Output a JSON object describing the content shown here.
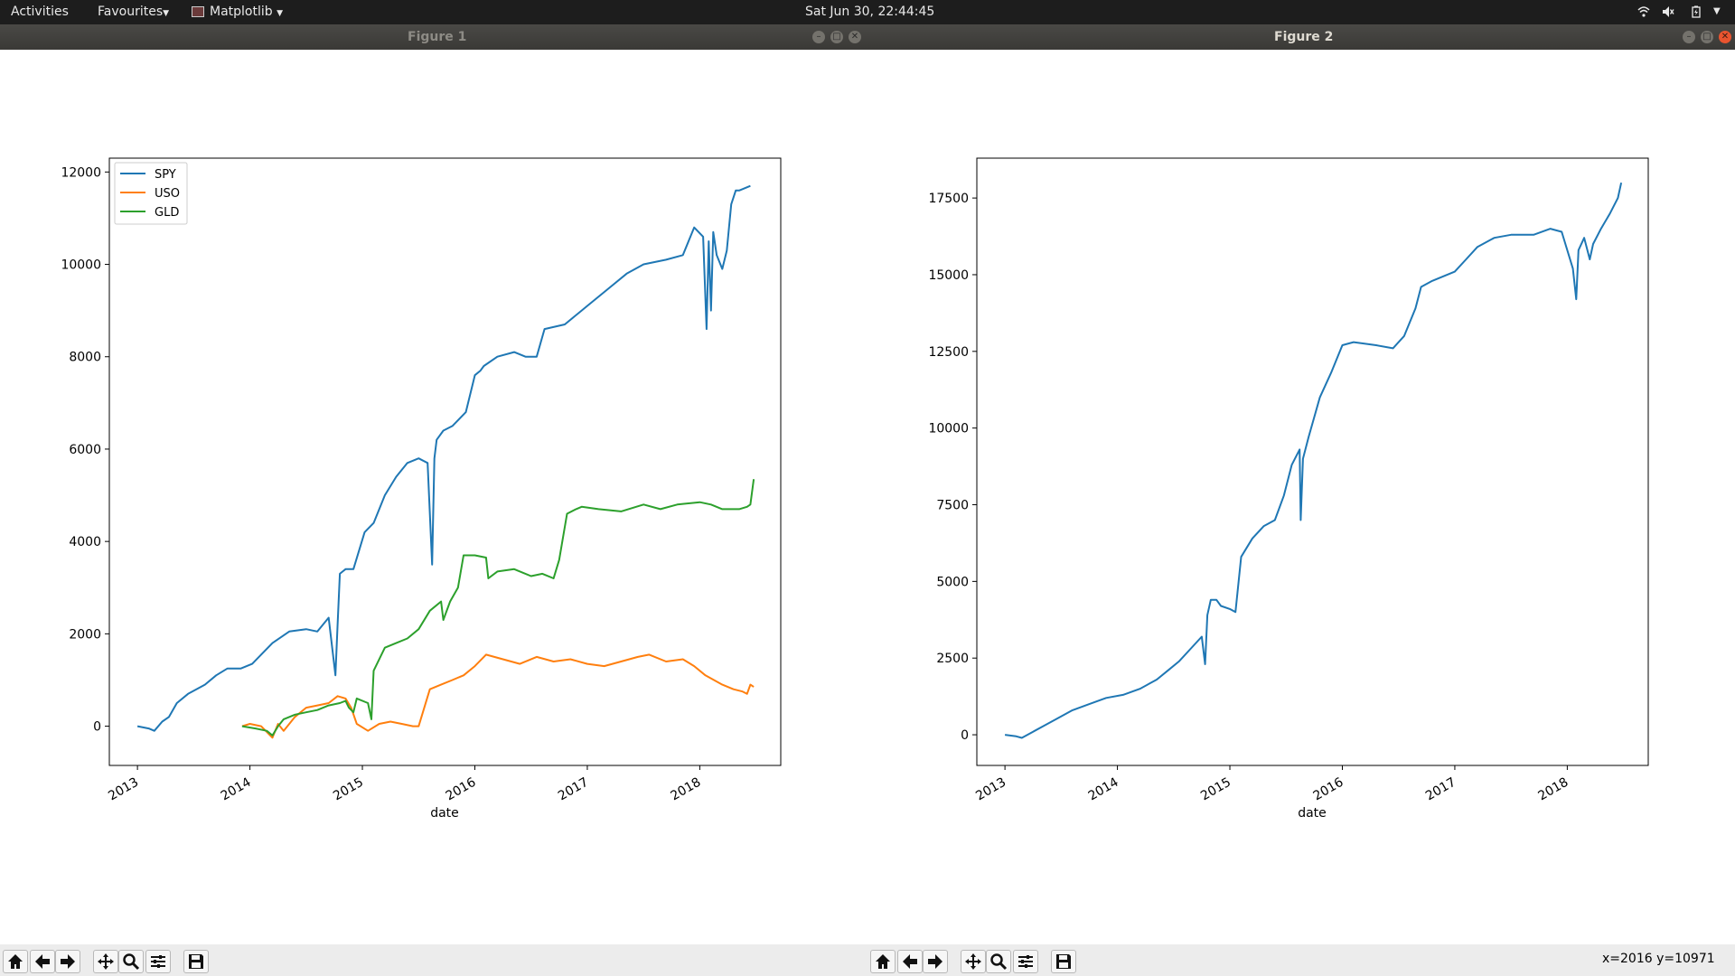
{
  "topbar": {
    "activities": "Activities",
    "favourites": "Favourites",
    "app_menu": "Matplotlib",
    "clock": "Sat Jun 30, 22:44:45",
    "icons": [
      "wifi-icon",
      "volume-muted-icon",
      "battery-icon",
      "system-menu-icon"
    ]
  },
  "windows": {
    "figure1": {
      "title": "Figure 1"
    },
    "figure2": {
      "title": "Figure 2"
    }
  },
  "toolbar": {
    "buttons": [
      "home-icon",
      "back-arrow-icon",
      "forward-arrow-icon",
      "pan-icon",
      "zoom-icon",
      "subplots-config-icon",
      "save-icon"
    ],
    "status": "x=2016 y=10971"
  },
  "colors": {
    "SPY": "#1f77b4",
    "USO": "#ff7f0e",
    "GLD": "#2ca02c"
  },
  "chart_data": [
    {
      "type": "line",
      "xlabel": "date",
      "ylabel": "",
      "xlim": [
        2012.75,
        2018.72
      ],
      "ylim": [
        -850,
        12300
      ],
      "yticks": [
        0,
        2000,
        4000,
        6000,
        8000,
        10000,
        12000
      ],
      "xticks": [
        2013,
        2014,
        2015,
        2016,
        2017,
        2018
      ],
      "legend": "upper-left",
      "series": [
        {
          "name": "SPY",
          "x": [
            2013.0,
            2013.1,
            2013.15,
            2013.22,
            2013.28,
            2013.35,
            2013.45,
            2013.6,
            2013.7,
            2013.8,
            2013.92,
            2014.02,
            2014.2,
            2014.35,
            2014.5,
            2014.6,
            2014.7,
            2014.76,
            2014.78,
            2014.8,
            2014.85,
            2014.92,
            2015.02,
            2015.1,
            2015.2,
            2015.3,
            2015.4,
            2015.5,
            2015.58,
            2015.62,
            2015.64,
            2015.66,
            2015.72,
            2015.8,
            2015.92,
            2016.0,
            2016.05,
            2016.08,
            2016.2,
            2016.35,
            2016.45,
            2016.55,
            2016.62,
            2016.8,
            2016.95,
            2017.0,
            2017.2,
            2017.35,
            2017.5,
            2017.7,
            2017.85,
            2017.95,
            2018.03,
            2018.06,
            2018.08,
            2018.1,
            2018.12,
            2018.15,
            2018.2,
            2018.24,
            2018.28,
            2018.32,
            2018.35,
            2018.45
          ],
          "y": [
            0,
            -50,
            -100,
            100,
            200,
            500,
            700,
            900,
            1100,
            1250,
            1250,
            1350,
            1800,
            2050,
            2100,
            2050,
            2350,
            1100,
            2200,
            3300,
            3400,
            3400,
            4200,
            4400,
            5000,
            5400,
            5700,
            5800,
            5700,
            3500,
            5800,
            6200,
            6400,
            6500,
            6800,
            7600,
            7700,
            7800,
            8000,
            8100,
            8000,
            8000,
            8600,
            8700,
            9000,
            9100,
            9500,
            9800,
            10000,
            10100,
            10200,
            10800,
            10600,
            8600,
            10500,
            9000,
            10700,
            10200,
            9900,
            10300,
            11300,
            11600,
            11600,
            11700
          ]
        },
        {
          "name": "USO",
          "x": [
            2013.93,
            2014.0,
            2014.1,
            2014.18,
            2014.2,
            2014.25,
            2014.3,
            2014.4,
            2014.5,
            2014.6,
            2014.7,
            2014.78,
            2014.85,
            2014.9,
            2014.95,
            2015.05,
            2015.15,
            2015.25,
            2015.35,
            2015.45,
            2015.5,
            2015.6,
            2015.7,
            2015.8,
            2015.9,
            2016.0,
            2016.1,
            2016.25,
            2016.4,
            2016.55,
            2016.7,
            2016.85,
            2017.0,
            2017.15,
            2017.3,
            2017.45,
            2017.55,
            2017.7,
            2017.85,
            2017.95,
            2018.05,
            2018.2,
            2018.3,
            2018.38,
            2018.42,
            2018.45,
            2018.48
          ],
          "y": [
            0,
            50,
            0,
            -200,
            -250,
            50,
            -100,
            200,
            400,
            450,
            500,
            650,
            600,
            400,
            50,
            -100,
            50,
            100,
            50,
            0,
            0,
            800,
            900,
            1000,
            1100,
            1300,
            1550,
            1450,
            1350,
            1500,
            1400,
            1450,
            1350,
            1300,
            1400,
            1500,
            1550,
            1400,
            1450,
            1300,
            1100,
            900,
            800,
            750,
            700,
            900,
            850
          ]
        },
        {
          "name": "GLD",
          "x": [
            2013.93,
            2014.05,
            2014.15,
            2014.2,
            2014.25,
            2014.3,
            2014.4,
            2014.5,
            2014.6,
            2014.7,
            2014.8,
            2014.85,
            2014.88,
            2014.92,
            2014.95,
            2015.05,
            2015.08,
            2015.1,
            2015.2,
            2015.3,
            2015.4,
            2015.5,
            2015.6,
            2015.7,
            2015.72,
            2015.78,
            2015.85,
            2015.9,
            2016.0,
            2016.1,
            2016.12,
            2016.2,
            2016.35,
            2016.5,
            2016.6,
            2016.7,
            2016.75,
            2016.82,
            2016.9,
            2016.95,
            2017.1,
            2017.3,
            2017.5,
            2017.65,
            2017.8,
            2018.0,
            2018.1,
            2018.2,
            2018.35,
            2018.42,
            2018.45,
            2018.48
          ],
          "y": [
            0,
            -50,
            -100,
            -200,
            0,
            150,
            250,
            300,
            350,
            450,
            500,
            550,
            400,
            300,
            600,
            500,
            150,
            1200,
            1700,
            1800,
            1900,
            2100,
            2500,
            2700,
            2300,
            2700,
            3000,
            3700,
            3700,
            3650,
            3200,
            3350,
            3400,
            3250,
            3300,
            3200,
            3600,
            4600,
            4700,
            4750,
            4700,
            4650,
            4800,
            4700,
            4800,
            4850,
            4800,
            4700,
            4700,
            4750,
            4800,
            5350
          ]
        }
      ]
    },
    {
      "type": "line",
      "xlabel": "date",
      "ylabel": "",
      "xlim": [
        2012.75,
        2018.72
      ],
      "ylim": [
        -1000,
        18800
      ],
      "yticks": [
        0,
        2500,
        5000,
        7500,
        10000,
        12500,
        15000,
        17500
      ],
      "xticks": [
        2013,
        2014,
        2015,
        2016,
        2017,
        2018
      ],
      "series": [
        {
          "x": [
            2013.0,
            2013.1,
            2013.15,
            2013.25,
            2013.35,
            2013.45,
            2013.6,
            2013.75,
            2013.9,
            2014.05,
            2014.2,
            2014.35,
            2014.45,
            2014.55,
            2014.65,
            2014.75,
            2014.78,
            2014.8,
            2014.83,
            2014.88,
            2014.92,
            2015.0,
            2015.05,
            2015.1,
            2015.2,
            2015.3,
            2015.4,
            2015.48,
            2015.55,
            2015.62,
            2015.63,
            2015.65,
            2015.7,
            2015.8,
            2015.9,
            2016.0,
            2016.1,
            2016.3,
            2016.45,
            2016.55,
            2016.65,
            2016.7,
            2016.8,
            2017.0,
            2017.1,
            2017.2,
            2017.35,
            2017.5,
            2017.7,
            2017.85,
            2017.95,
            2018.05,
            2018.08,
            2018.1,
            2018.15,
            2018.2,
            2018.23,
            2018.3,
            2018.38,
            2018.45,
            2018.48
          ],
          "y": [
            0,
            -50,
            -100,
            100,
            300,
            500,
            800,
            1000,
            1200,
            1300,
            1500,
            1800,
            2100,
            2400,
            2800,
            3200,
            2300,
            3900,
            4400,
            4400,
            4200,
            4100,
            4000,
            5800,
            6400,
            6800,
            7000,
            7800,
            8800,
            9300,
            7000,
            9000,
            9700,
            11000,
            11800,
            12700,
            12800,
            12700,
            12600,
            13000,
            13900,
            14600,
            14800,
            15100,
            15500,
            15900,
            16200,
            16300,
            16300,
            16500,
            16400,
            15200,
            14200,
            15800,
            16200,
            15500,
            16000,
            16500,
            17000,
            17500,
            18000
          ]
        }
      ]
    }
  ]
}
